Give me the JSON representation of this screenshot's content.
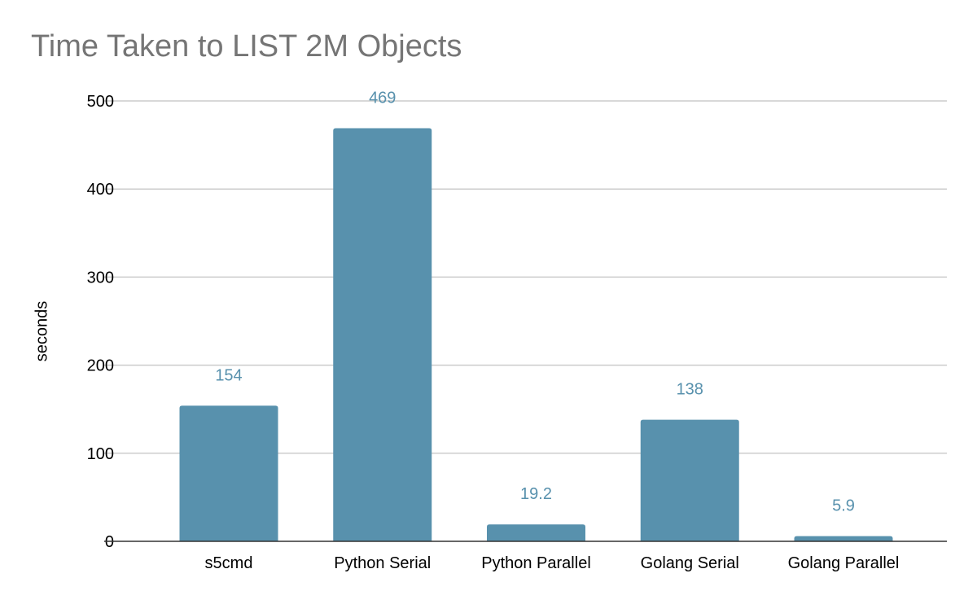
{
  "chart_data": {
    "type": "bar",
    "title": "Time Taken to LIST 2M Objects",
    "xlabel": "",
    "ylabel": "seconds",
    "categories": [
      "s5cmd",
      "Python Serial",
      "Python Parallel",
      "Golang Serial",
      "Golang Parallel"
    ],
    "values": [
      154,
      469,
      19.2,
      138,
      5.9
    ],
    "data_labels": [
      "154",
      "469",
      "19.2",
      "138",
      "5.9"
    ],
    "ylim": [
      0,
      500
    ],
    "yticks": [
      0,
      100,
      200,
      300,
      400,
      500
    ],
    "grid": true,
    "legend": "none",
    "bar_color": "#5891ad",
    "label_color": "#5891ad",
    "grid_color": "#cccccc",
    "title_color": "#757575"
  }
}
